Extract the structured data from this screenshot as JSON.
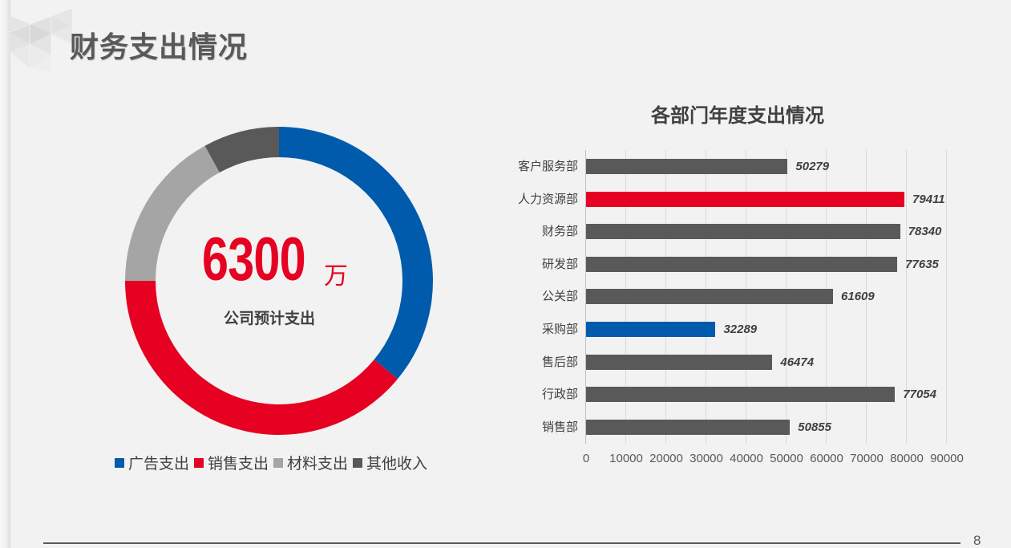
{
  "page": {
    "title": "财务支出情况",
    "page_number": "8"
  },
  "donut": {
    "center_value": "6300",
    "center_unit": "万",
    "center_label": "公司预计支出",
    "legend": [
      {
        "label": "广告支出",
        "color": "#005bac"
      },
      {
        "label": "销售支出",
        "color": "#e60021"
      },
      {
        "label": "材料支出",
        "color": "#a5a5a5"
      },
      {
        "label": "其他收入",
        "color": "#595959"
      }
    ]
  },
  "bar_chart": {
    "title": "各部门年度支出情况",
    "ticks": [
      "0",
      "10000",
      "20000",
      "30000",
      "40000",
      "50000",
      "60000",
      "70000",
      "80000",
      "90000"
    ]
  },
  "chart_data": [
    {
      "type": "pie",
      "title": "公司预计支出 6300万",
      "subtype": "donut",
      "categories": [
        "广告支出",
        "销售支出",
        "材料支出",
        "其他收入"
      ],
      "values": [
        36,
        39,
        17,
        8
      ],
      "unit": "% (estimated from slice angles)",
      "colors": [
        "#005bac",
        "#e60021",
        "#a5a5a5",
        "#595959"
      ],
      "center_text": "6300万",
      "legend_position": "bottom"
    },
    {
      "type": "bar",
      "orientation": "horizontal",
      "title": "各部门年度支出情况",
      "categories": [
        "客户服务部",
        "人力资源部",
        "财务部",
        "研发部",
        "公关部",
        "采购部",
        "售后部",
        "行政部",
        "销售部"
      ],
      "values": [
        50279,
        79411,
        78340,
        77635,
        61609,
        32289,
        46474,
        77054,
        50855
      ],
      "colors": [
        "#595959",
        "#e60021",
        "#595959",
        "#595959",
        "#595959",
        "#005bac",
        "#595959",
        "#595959",
        "#595959"
      ],
      "xlabel": "",
      "ylabel": "",
      "xlim": [
        0,
        90000
      ],
      "xticks": [
        0,
        10000,
        20000,
        30000,
        40000,
        50000,
        60000,
        70000,
        80000,
        90000
      ],
      "grid": true,
      "data_labels": true
    }
  ]
}
